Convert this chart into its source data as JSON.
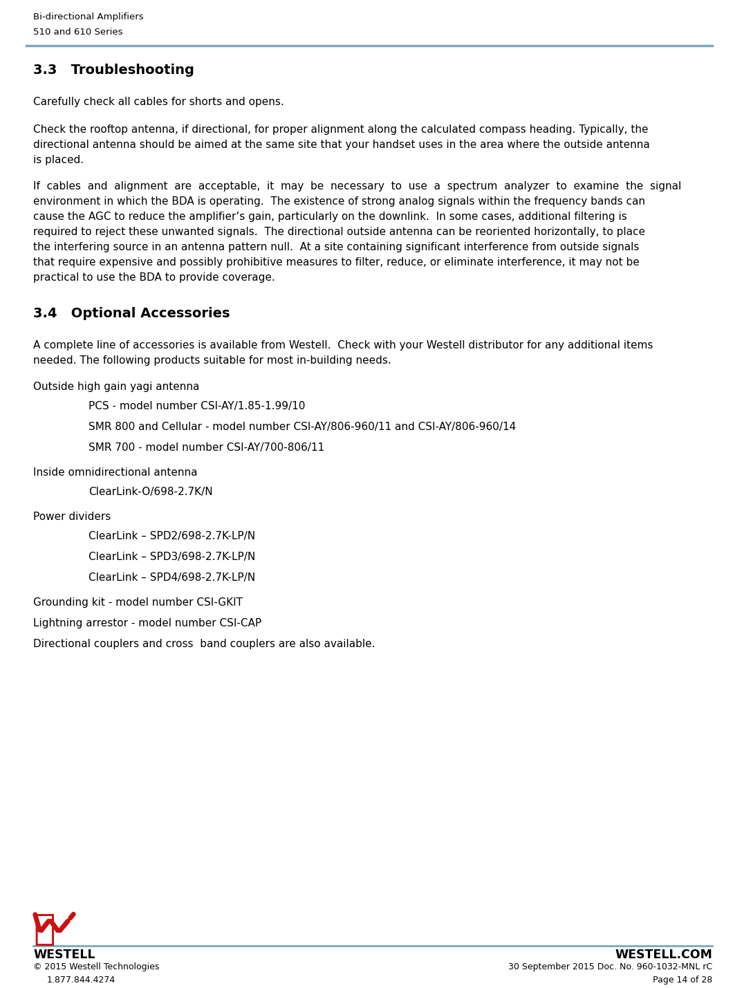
{
  "header_line1": "Bi-directional Amplifiers",
  "header_line2": "510 and 610 Series",
  "header_line_color": "#7BA7BC",
  "section_33_title": "3.3   Troubleshooting",
  "para1": "Carefully check all cables for shorts and opens.",
  "para2_lines": [
    "Check the rooftop antenna, if directional, for proper alignment along the calculated compass heading. Typically, the",
    "directional antenna should be aimed at the same site that your handset uses in the area where the outside antenna",
    "is placed."
  ],
  "para3_lines": [
    "If  cables  and  alignment  are  acceptable,  it  may  be  necessary  to  use  a  spectrum  analyzer  to  examine  the  signal",
    "environment in which the BDA is operating.  The existence of strong analog signals within the frequency bands can",
    "cause the AGC to reduce the amplifier’s gain, particularly on the downlink.  In some cases, additional filtering is",
    "required to reject these unwanted signals.  The directional outside antenna can be reoriented horizontally, to place",
    "the interfering source in an antenna pattern null.  At a site containing significant interference from outside signals",
    "that require expensive and possibly prohibitive measures to filter, reduce, or eliminate interference, it may not be",
    "practical to use the BDA to provide coverage."
  ],
  "section_34_title": "3.4   Optional Accessories",
  "para4_lines": [
    "A complete line of accessories is available from Westell.  Check with your Westell distributor for any additional items",
    "needed. The following products suitable for most in-building needs."
  ],
  "item1": "Outside high gain yagi antenna",
  "sub1": "PCS - model number CSI-AY/1.85-1.99/10",
  "sub2": "SMR 800 and Cellular - model number CSI-AY/806-960/11 and CSI-AY/806-960/14",
  "sub3": "SMR 700 - model number CSI-AY/700-806/11",
  "item2": "Inside omnidirectional antenna",
  "sub4": "ClearLink-O/698-2.7K/N",
  "item3": "Power dividers",
  "sub5": "ClearLink – SPD2/698-2.7K-LP/N",
  "sub6": "ClearLink – SPD3/698-2.7K-LP/N",
  "sub7": "ClearLink – SPD4/698-2.7K-LP/N",
  "item4": "Grounding kit - model number CSI-GKIT",
  "item5": "Lightning arrestor - model number CSI-CAP",
  "item6": "Directional couplers and cross  band couplers are also available.",
  "footer_company": "WESTELL",
  "footer_website": "WESTELL.COM",
  "footer_copyright": "© 2015 Westell Technologies",
  "footer_phone": "1.877.844.4274",
  "footer_doc": "30 September 2015 Doc. No. 960-1032-MNL rC",
  "footer_page": "Page 14 of 28",
  "footer_line_color": "#7BA7BC",
  "logo_color": "#CC1111",
  "bg_color": "#ffffff",
  "text_color": "#000000",
  "font_size_body": 11.0,
  "font_size_header": 9.5,
  "font_size_section": 14.0,
  "font_size_footer_bold": 12.5,
  "font_size_footer_small": 9.0
}
